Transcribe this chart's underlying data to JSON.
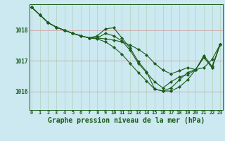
{
  "background_color": "#cce8f0",
  "grid_color": "#cc9999",
  "line_color": "#1a5c1a",
  "marker_color": "#1a5c1a",
  "xlabel": "Graphe pression niveau de la mer (hPa)",
  "xlabel_fontsize": 7,
  "xticks": [
    0,
    1,
    2,
    3,
    4,
    5,
    6,
    7,
    8,
    9,
    10,
    11,
    12,
    13,
    14,
    15,
    16,
    17,
    18,
    19,
    20,
    21,
    22,
    23
  ],
  "yticks": [
    1016,
    1017,
    1018
  ],
  "ylim": [
    1015.4,
    1018.85
  ],
  "xlim": [
    -0.3,
    23.3
  ],
  "lines": [
    [
      1018.75,
      1018.5,
      1018.25,
      1018.1,
      1018.0,
      1017.9,
      1017.82,
      1017.75,
      1017.75,
      1017.72,
      1017.68,
      1017.62,
      1017.52,
      1017.38,
      1017.2,
      1016.92,
      1016.7,
      1016.58,
      1016.68,
      1016.78,
      1016.72,
      1016.78,
      1017.05,
      1017.55
    ],
    [
      1018.75,
      1018.5,
      1018.25,
      1018.1,
      1018.0,
      1017.9,
      1017.82,
      1017.75,
      1017.82,
      1018.05,
      1018.08,
      1017.75,
      1017.42,
      1016.98,
      1016.65,
      1016.08,
      1016.02,
      1016.02,
      1016.15,
      1016.38,
      1016.72,
      1017.12,
      1016.78,
      1017.55
    ],
    [
      1018.75,
      1018.5,
      1018.25,
      1018.1,
      1018.0,
      1017.9,
      1017.82,
      1017.75,
      1017.75,
      1017.9,
      1017.82,
      1017.65,
      1017.35,
      1016.92,
      1016.62,
      1016.32,
      1016.12,
      1016.32,
      1016.48,
      1016.55,
      1016.72,
      1017.12,
      1016.78,
      1017.55
    ],
    [
      1018.75,
      1018.5,
      1018.25,
      1018.1,
      1018.0,
      1017.9,
      1017.82,
      1017.75,
      1017.72,
      1017.62,
      1017.45,
      1017.22,
      1016.92,
      1016.62,
      1016.35,
      1016.08,
      1016.02,
      1016.12,
      1016.38,
      1016.62,
      1016.72,
      1017.18,
      1016.82,
      1017.55
    ]
  ]
}
